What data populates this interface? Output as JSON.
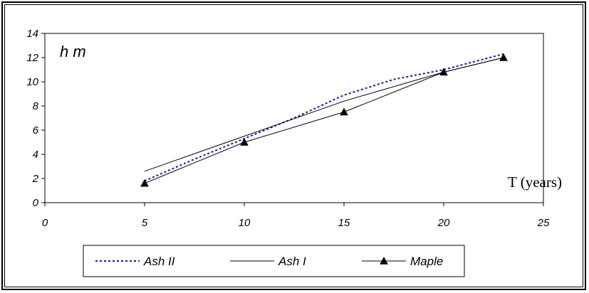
{
  "chart_data": {
    "type": "line",
    "title": "",
    "ylabel": "h m",
    "xlabel": "T (years)",
    "xlim": [
      0,
      25
    ],
    "ylim": [
      0,
      14
    ],
    "xticks": [
      "0",
      "5",
      "10",
      "15",
      "20",
      "25"
    ],
    "yticks": [
      "0",
      "2",
      "4",
      "6",
      "8",
      "10",
      "12",
      "14"
    ],
    "grid": false,
    "legend_position": "bottom",
    "series": [
      {
        "name": "Ash II",
        "style": "dotted",
        "color": "#1a1a8c",
        "marker": "none",
        "x": [
          5,
          7.5,
          10,
          12.5,
          15,
          17.5,
          20,
          23
        ],
        "y": [
          1.8,
          3.6,
          5.3,
          7.0,
          8.9,
          10.2,
          11.0,
          12.3
        ]
      },
      {
        "name": "Ash I",
        "style": "solid",
        "color": "#000000",
        "marker": "none",
        "x": [
          5,
          10,
          15,
          20,
          23
        ],
        "y": [
          2.6,
          5.5,
          8.4,
          10.8,
          12.0
        ]
      },
      {
        "name": "Maple",
        "style": "solid",
        "color": "#000000",
        "marker": "triangle",
        "x": [
          5,
          10,
          15,
          20,
          23
        ],
        "y": [
          1.6,
          5.0,
          7.5,
          10.8,
          12.0
        ]
      }
    ]
  }
}
